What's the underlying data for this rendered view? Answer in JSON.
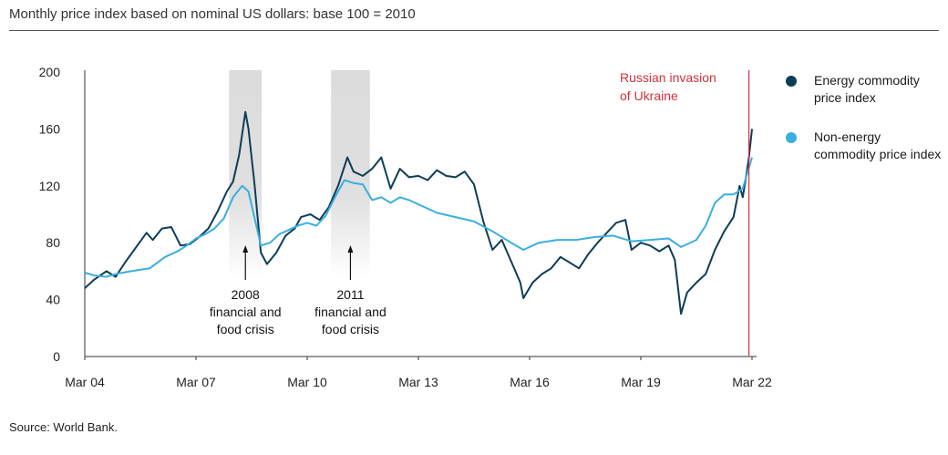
{
  "title": "Monthly price index based on nominal US dollars: base 100 = 2010",
  "source": "Source: World Bank.",
  "colors": {
    "energy": "#0d3d56",
    "non_energy": "#3aaee0",
    "event_line": "#d0323c",
    "shade": "#dcdcdc"
  },
  "chart_data": {
    "type": "line",
    "x_ticks": [
      "Mar 04",
      "Mar 07",
      "Mar 10",
      "Mar 13",
      "Mar 16",
      "Mar 19",
      "Mar 22"
    ],
    "y_ticks": [
      0,
      40,
      80,
      120,
      160,
      200
    ],
    "ylim": [
      0,
      200
    ],
    "xlim": [
      "2004-03",
      "2022-03"
    ],
    "grid": false,
    "legend_position": "right",
    "series": [
      {
        "name": "Energy commodity price index",
        "color": "#0d3d56",
        "points": [
          [
            "2004-03",
            48
          ],
          [
            "2004-06",
            54
          ],
          [
            "2004-10",
            60
          ],
          [
            "2005-01",
            56
          ],
          [
            "2005-04",
            66
          ],
          [
            "2005-08",
            78
          ],
          [
            "2005-11",
            87
          ],
          [
            "2006-01",
            82
          ],
          [
            "2006-04",
            90
          ],
          [
            "2006-07",
            91
          ],
          [
            "2006-10",
            78
          ],
          [
            "2007-01",
            79
          ],
          [
            "2007-04",
            84
          ],
          [
            "2007-07",
            90
          ],
          [
            "2007-10",
            102
          ],
          [
            "2008-01",
            116
          ],
          [
            "2008-03",
            123
          ],
          [
            "2008-05",
            142
          ],
          [
            "2008-07",
            172
          ],
          [
            "2008-08",
            160
          ],
          [
            "2008-10",
            120
          ],
          [
            "2008-12",
            73
          ],
          [
            "2009-02",
            65
          ],
          [
            "2009-05",
            73
          ],
          [
            "2009-08",
            85
          ],
          [
            "2009-11",
            90
          ],
          [
            "2010-01",
            98
          ],
          [
            "2010-04",
            100
          ],
          [
            "2010-07",
            96
          ],
          [
            "2010-10",
            105
          ],
          [
            "2011-01",
            120
          ],
          [
            "2011-04",
            140
          ],
          [
            "2011-06",
            130
          ],
          [
            "2011-09",
            127
          ],
          [
            "2011-12",
            132
          ],
          [
            "2012-03",
            140
          ],
          [
            "2012-06",
            118
          ],
          [
            "2012-09",
            132
          ],
          [
            "2012-12",
            126
          ],
          [
            "2013-03",
            127
          ],
          [
            "2013-06",
            124
          ],
          [
            "2013-09",
            131
          ],
          [
            "2013-12",
            127
          ],
          [
            "2014-03",
            126
          ],
          [
            "2014-06",
            130
          ],
          [
            "2014-09",
            121
          ],
          [
            "2014-12",
            95
          ],
          [
            "2015-03",
            75
          ],
          [
            "2015-06",
            82
          ],
          [
            "2015-09",
            67
          ],
          [
            "2015-12",
            52
          ],
          [
            "2016-01",
            41
          ],
          [
            "2016-04",
            52
          ],
          [
            "2016-07",
            58
          ],
          [
            "2016-10",
            62
          ],
          [
            "2017-01",
            70
          ],
          [
            "2017-04",
            66
          ],
          [
            "2017-07",
            62
          ],
          [
            "2017-10",
            72
          ],
          [
            "2018-01",
            80
          ],
          [
            "2018-04",
            87
          ],
          [
            "2018-07",
            94
          ],
          [
            "2018-10",
            96
          ],
          [
            "2018-12",
            75
          ],
          [
            "2019-03",
            80
          ],
          [
            "2019-06",
            78
          ],
          [
            "2019-09",
            74
          ],
          [
            "2019-12",
            78
          ],
          [
            "2020-02",
            68
          ],
          [
            "2020-04",
            30
          ],
          [
            "2020-06",
            45
          ],
          [
            "2020-09",
            52
          ],
          [
            "2020-12",
            58
          ],
          [
            "2021-03",
            75
          ],
          [
            "2021-06",
            88
          ],
          [
            "2021-09",
            98
          ],
          [
            "2021-11",
            120
          ],
          [
            "2021-12",
            112
          ],
          [
            "2022-01",
            125
          ],
          [
            "2022-02",
            140
          ],
          [
            "2022-03",
            160
          ]
        ]
      },
      {
        "name": "Non-energy commodity price index",
        "color": "#3aaee0",
        "points": [
          [
            "2004-03",
            59
          ],
          [
            "2004-06",
            57
          ],
          [
            "2004-10",
            56
          ],
          [
            "2005-01",
            58
          ],
          [
            "2005-06",
            60
          ],
          [
            "2005-12",
            62
          ],
          [
            "2006-05",
            70
          ],
          [
            "2006-09",
            74
          ],
          [
            "2006-12",
            78
          ],
          [
            "2007-03",
            83
          ],
          [
            "2007-06",
            86
          ],
          [
            "2007-09",
            90
          ],
          [
            "2007-12",
            97
          ],
          [
            "2008-03",
            112
          ],
          [
            "2008-06",
            120
          ],
          [
            "2008-08",
            116
          ],
          [
            "2008-10",
            97
          ],
          [
            "2008-12",
            78
          ],
          [
            "2009-03",
            80
          ],
          [
            "2009-06",
            86
          ],
          [
            "2009-09",
            89
          ],
          [
            "2009-12",
            92
          ],
          [
            "2010-03",
            94
          ],
          [
            "2010-06",
            92
          ],
          [
            "2010-09",
            99
          ],
          [
            "2010-12",
            112
          ],
          [
            "2011-03",
            124
          ],
          [
            "2011-06",
            122
          ],
          [
            "2011-09",
            121
          ],
          [
            "2011-12",
            110
          ],
          [
            "2012-03",
            112
          ],
          [
            "2012-06",
            108
          ],
          [
            "2012-09",
            112
          ],
          [
            "2012-12",
            110
          ],
          [
            "2013-03",
            107
          ],
          [
            "2013-09",
            101
          ],
          [
            "2014-03",
            98
          ],
          [
            "2014-09",
            95
          ],
          [
            "2015-03",
            88
          ],
          [
            "2015-09",
            80
          ],
          [
            "2016-01",
            75
          ],
          [
            "2016-06",
            80
          ],
          [
            "2016-12",
            82
          ],
          [
            "2017-06",
            82
          ],
          [
            "2017-12",
            84
          ],
          [
            "2018-06",
            85
          ],
          [
            "2018-12",
            81
          ],
          [
            "2019-06",
            82
          ],
          [
            "2019-12",
            83
          ],
          [
            "2020-04",
            77
          ],
          [
            "2020-09",
            82
          ],
          [
            "2020-12",
            92
          ],
          [
            "2021-03",
            108
          ],
          [
            "2021-06",
            114
          ],
          [
            "2021-09",
            114
          ],
          [
            "2021-12",
            118
          ],
          [
            "2022-03",
            140
          ]
        ]
      }
    ],
    "shaded_periods": [
      {
        "start": "2008-02",
        "end": "2008-12",
        "label_year": "2008",
        "label_rest": "financial and food crisis"
      },
      {
        "start": "2010-11",
        "end": "2011-11",
        "label_year": "2011",
        "label_rest": "financial and food crisis"
      }
    ],
    "event": {
      "date": "2022-02",
      "label": "Russian invasion of Ukraine"
    }
  },
  "annotation_lines": {
    "crisis2008": [
      "2008",
      "financial and",
      "food crisis"
    ],
    "crisis2011": [
      "2011",
      "financial and",
      "food crisis"
    ],
    "event": [
      "Russian invasion",
      "of Ukraine"
    ]
  },
  "legend": {
    "energy_label": "Energy commodity price index",
    "non_energy_label": "Non-energy commodity price index"
  }
}
